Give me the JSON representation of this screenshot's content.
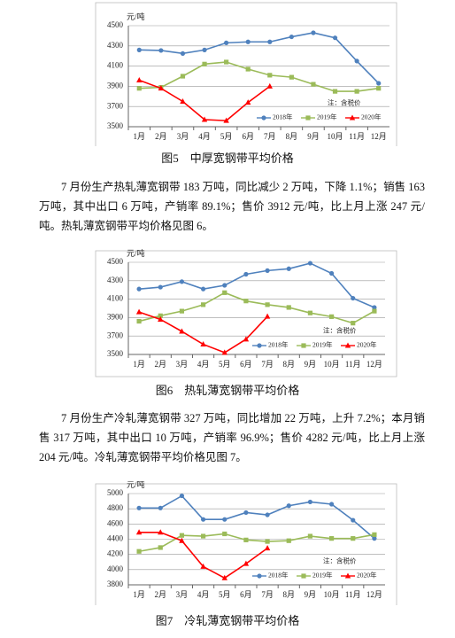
{
  "chart_data": [
    {
      "type": "line",
      "title": "图5　中厚宽钢带平均价格",
      "ylabel": "元/吨",
      "annotation": "注：含税价",
      "categories": [
        "1月",
        "2月",
        "3月",
        "4月",
        "5月",
        "6月",
        "7月",
        "8月",
        "9月",
        "10月",
        "11月",
        "12月"
      ],
      "ylim": [
        3500,
        4500
      ],
      "yticks": [
        3500,
        3700,
        3900,
        4100,
        4300,
        4500
      ],
      "grid": true,
      "series": [
        {
          "name": "2018年",
          "color": "#4f81bd",
          "marker": "circle",
          "values": [
            4260,
            4255,
            4225,
            4260,
            4330,
            4340,
            4340,
            4390,
            4430,
            4380,
            4150,
            3930
          ]
        },
        {
          "name": "2019年",
          "color": "#9bbb59",
          "marker": "square",
          "values": [
            3880,
            3890,
            4000,
            4120,
            4140,
            4070,
            4010,
            3990,
            3920,
            3850,
            3850,
            3880
          ]
        },
        {
          "name": "2020年",
          "color": "#ff0000",
          "marker": "triangle",
          "values": [
            3960,
            3880,
            3750,
            3570,
            3560,
            3740,
            3900,
            null,
            null,
            null,
            null,
            null
          ]
        }
      ]
    },
    {
      "type": "line",
      "title": "图6　热轧薄宽钢带平均价格",
      "ylabel": "元/吨",
      "annotation": "注：含税价",
      "categories": [
        "1月",
        "2月",
        "3月",
        "4月",
        "5月",
        "6月",
        "7月",
        "8月",
        "9月",
        "10月",
        "11月",
        "12月"
      ],
      "ylim": [
        3500,
        4500
      ],
      "yticks": [
        3500,
        3700,
        3900,
        4100,
        4300,
        4500
      ],
      "grid": true,
      "series": [
        {
          "name": "2018年",
          "color": "#4f81bd",
          "marker": "circle",
          "values": [
            4210,
            4230,
            4290,
            4210,
            4250,
            4370,
            4410,
            4430,
            4490,
            4380,
            4110,
            4010
          ]
        },
        {
          "name": "2019年",
          "color": "#9bbb59",
          "marker": "square",
          "values": [
            3860,
            3920,
            3970,
            4040,
            4170,
            4080,
            4040,
            4010,
            3950,
            3910,
            3840,
            3970
          ]
        },
        {
          "name": "2020年",
          "color": "#ff0000",
          "marker": "triangle",
          "values": [
            3960,
            3880,
            3750,
            3610,
            3520,
            3665,
            3912,
            null,
            null,
            null,
            null,
            null
          ]
        }
      ]
    },
    {
      "type": "line",
      "title": "图7　冷轧薄宽钢带平均价格",
      "ylabel": "元/吨",
      "annotation": "注：含税价",
      "categories": [
        "1月",
        "2月",
        "3月",
        "4月",
        "5月",
        "6月",
        "7月",
        "8月",
        "9月",
        "10月",
        "11月",
        "12月"
      ],
      "ylim": [
        3800,
        5000
      ],
      "yticks": [
        3800,
        4000,
        4200,
        4400,
        4600,
        4800,
        5000
      ],
      "grid": true,
      "series": [
        {
          "name": "2018年",
          "color": "#4f81bd",
          "marker": "circle",
          "values": [
            4810,
            4810,
            4970,
            4660,
            4660,
            4750,
            4720,
            4840,
            4890,
            4860,
            4650,
            4410
          ]
        },
        {
          "name": "2019年",
          "color": "#9bbb59",
          "marker": "square",
          "values": [
            4240,
            4290,
            4450,
            4440,
            4470,
            4390,
            4370,
            4380,
            4440,
            4410,
            4410,
            4460
          ]
        },
        {
          "name": "2020年",
          "color": "#ff0000",
          "marker": "triangle",
          "values": [
            4490,
            4490,
            4380,
            4040,
            3890,
            4078,
            4282,
            null,
            null,
            null,
            null,
            null
          ]
        }
      ]
    }
  ],
  "paragraphs": [
    "7 月份生产热轧薄宽钢带 183 万吨，同比减少 2 万吨，下降 1.1%；销售 163 万吨，其中出口 6 万吨，产销率 89.1%；售价 3912 元/吨，比上月上涨 247 元/吨。热轧薄宽钢带平均价格见图 6。",
    "7 月份生产冷轧薄宽钢带 327 万吨，同比增加 22 万吨，上升 7.2%；本月销售 317 万吨，其中出口 10 万吨，产销率 96.9%；售价 4282 元/吨，比上月上涨 204 元/吨。冷轧薄宽钢带平均价格见图 7。"
  ]
}
